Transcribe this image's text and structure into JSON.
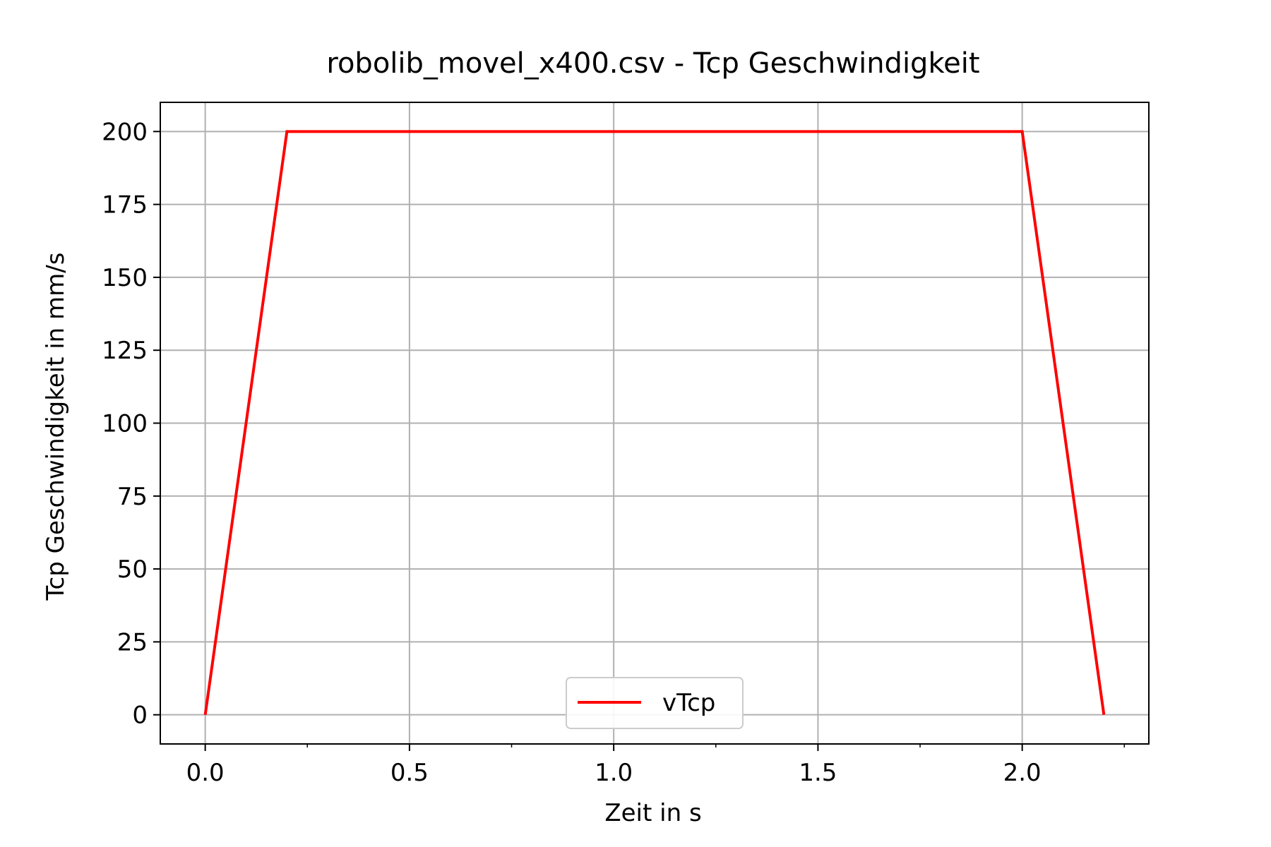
{
  "chart_data": {
    "type": "line",
    "title": "robolib_movel_x400.csv - Tcp Geschwindigkeit",
    "xlabel": "Zeit in s",
    "ylabel": "Tcp Geschwindigkeit in mm/s",
    "xlim": [
      -0.11,
      2.31
    ],
    "ylim": [
      -10,
      210
    ],
    "xticks": [
      0.0,
      0.5,
      1.0,
      1.5,
      2.0
    ],
    "xtick_labels": [
      "0.0",
      "0.5",
      "1.0",
      "1.5",
      "2.0"
    ],
    "x_minor_ticks": [
      0.25,
      0.75,
      1.25,
      1.75,
      2.25
    ],
    "yticks": [
      0,
      25,
      50,
      75,
      100,
      125,
      150,
      175,
      200
    ],
    "ytick_labels": [
      "0",
      "25",
      "50",
      "75",
      "100",
      "125",
      "150",
      "175",
      "200"
    ],
    "grid": true,
    "legend_position": "lower center",
    "series": [
      {
        "name": "vTcp",
        "color": "#ff0000",
        "x": [
          0.0,
          0.2,
          2.0,
          2.2
        ],
        "y": [
          0,
          200,
          200,
          0
        ]
      }
    ]
  }
}
